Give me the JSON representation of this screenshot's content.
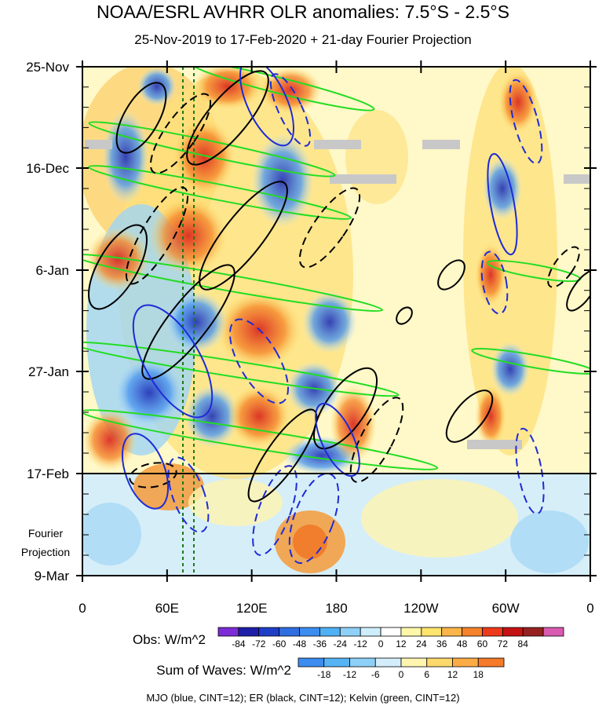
{
  "chart_data": {
    "type": "heatmap",
    "title": "NOAA/ESRL AVHRR OLR anomalies: 7.5°S - 2.5°S",
    "subtitle": "25-Nov-2019 to 17-Feb-2020 + 21-day Fourier Projection",
    "y_ticks": [
      "25-Nov",
      "16-Dec",
      "6-Jan",
      "27-Jan",
      "17-Feb",
      "9-Mar"
    ],
    "x_ticks": [
      "0",
      "60E",
      "120E",
      "180",
      "120W",
      "60W",
      "0"
    ],
    "projection_label_line1": "Fourier",
    "projection_label_line2": "Projection",
    "obs_colorbar": {
      "label": "Obs: W/m^2",
      "ticks": [
        "-84",
        "-72",
        "-60",
        "-48",
        "-36",
        "-24",
        "-12",
        "0",
        "12",
        "24",
        "36",
        "48",
        "60",
        "72",
        "84"
      ],
      "colors": [
        "#7d2bd6",
        "#1f1fa8",
        "#1e3ec7",
        "#2e6fe0",
        "#3d8cf0",
        "#4fb0f5",
        "#8ed0f7",
        "#cdeefa",
        "#ffffff",
        "#fff7a8",
        "#fde46d",
        "#fbb54a",
        "#f5822c",
        "#ee3a1c",
        "#c31313",
        "#962121",
        "#d95bb0"
      ]
    },
    "waves_colorbar": {
      "label": "Sum of Waves: W/m^2",
      "ticks": [
        "-18",
        "-12",
        "-6",
        "0",
        "6",
        "12",
        "18"
      ],
      "colors": [
        "#3d8cf0",
        "#56b4f5",
        "#8ed0f7",
        "#d3eefa",
        "#fff4b0",
        "#fdd86a",
        "#fbac45",
        "#f57a2a"
      ]
    },
    "footer": "MJO (blue, CINT=12); ER (black, CINT=12); Kelvin (green, CINT=12)",
    "contour_colors": {
      "mjo": "#1e2bd6",
      "er": "#000000",
      "kelvin": "#22dd22"
    },
    "shaded_field": "OLR anomaly (W/m^2)",
    "grid": false
  }
}
